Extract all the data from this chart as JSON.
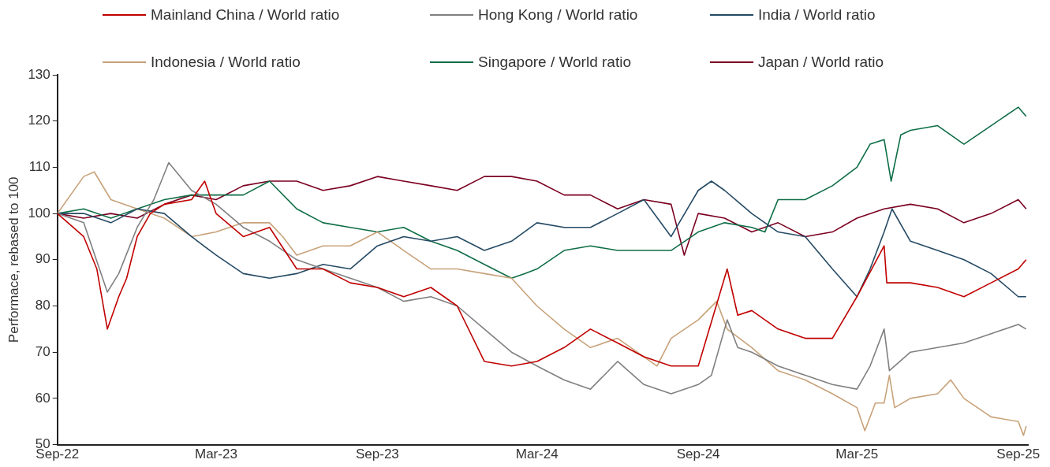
{
  "chart_data": {
    "type": "line",
    "ylabel": "Performace, rebased to 100",
    "xlim": [
      "2022-09-01",
      "2025-09-12"
    ],
    "xticks": [
      {
        "value": "2022-09-01",
        "label": "Sep-22"
      },
      {
        "value": "2023-03-01",
        "label": "Mar-23"
      },
      {
        "value": "2023-09-01",
        "label": "Sep-23"
      },
      {
        "value": "2024-03-01",
        "label": "Mar-24"
      },
      {
        "value": "2024-09-01",
        "label": "Sep-24"
      },
      {
        "value": "2025-03-01",
        "label": "Mar-25"
      },
      {
        "value": "2025-09-01",
        "label": "Sep-25"
      }
    ],
    "ylim": [
      50,
      130
    ],
    "yticks": [
      50,
      60,
      70,
      80,
      90,
      100,
      110,
      120,
      130
    ],
    "grid": false,
    "legend": "top",
    "marker": "none",
    "line_style": "solid",
    "series": [
      {
        "name": "Mainland China / World ratio",
        "color": "#c00000",
        "x": [
          "2022-09-01",
          "2022-10-01",
          "2022-10-16",
          "2022-10-28",
          "2022-11-10",
          "2022-11-19",
          "2022-12-01",
          "2022-12-16",
          "2023-01-01",
          "2023-02-01",
          "2023-02-16",
          "2023-03-01",
          "2023-04-01",
          "2023-05-01",
          "2023-06-01",
          "2023-07-01",
          "2023-08-01",
          "2023-09-01",
          "2023-10-01",
          "2023-11-01",
          "2023-12-01",
          "2024-01-01",
          "2024-02-01",
          "2024-03-01",
          "2024-04-01",
          "2024-05-01",
          "2024-06-01",
          "2024-07-01",
          "2024-08-01",
          "2024-09-01",
          "2024-10-04",
          "2024-10-16",
          "2024-11-01",
          "2024-12-01",
          "2025-01-01",
          "2025-02-01",
          "2025-03-01",
          "2025-04-01",
          "2025-04-04",
          "2025-05-01",
          "2025-06-01",
          "2025-07-01",
          "2025-08-01",
          "2025-09-01",
          "2025-09-10"
        ],
        "values": [
          100,
          95,
          88,
          75,
          82,
          86,
          95,
          100,
          102,
          103,
          107,
          100,
          95,
          97,
          88,
          88,
          85,
          84,
          82,
          84,
          80,
          68,
          67,
          68,
          71,
          75,
          72,
          69,
          67,
          67,
          88,
          78,
          79,
          75,
          73,
          73,
          82,
          93,
          85,
          85,
          84,
          82,
          85,
          88,
          90
        ]
      },
      {
        "name": "Hong Kong / World ratio",
        "color": "#808080",
        "x": [
          "2022-09-01",
          "2022-10-01",
          "2022-10-28",
          "2022-11-10",
          "2022-12-01",
          "2022-12-20",
          "2023-01-06",
          "2023-02-01",
          "2023-03-01",
          "2023-04-01",
          "2023-05-01",
          "2023-06-01",
          "2023-07-01",
          "2023-08-01",
          "2023-09-01",
          "2023-10-01",
          "2023-11-01",
          "2023-12-01",
          "2024-01-01",
          "2024-02-01",
          "2024-03-01",
          "2024-04-01",
          "2024-05-01",
          "2024-06-01",
          "2024-07-01",
          "2024-08-01",
          "2024-09-01",
          "2024-09-16",
          "2024-10-04",
          "2024-10-16",
          "2024-11-01",
          "2024-12-01",
          "2025-01-01",
          "2025-02-01",
          "2025-03-01",
          "2025-03-16",
          "2025-04-01",
          "2025-04-07",
          "2025-05-01",
          "2025-06-01",
          "2025-07-01",
          "2025-08-01",
          "2025-09-01",
          "2025-09-10"
        ],
        "values": [
          100,
          98,
          83,
          87,
          97,
          103,
          111,
          105,
          102,
          97,
          94,
          90,
          88,
          86,
          84,
          81,
          82,
          80,
          75,
          70,
          67,
          64,
          62,
          68,
          63,
          61,
          63,
          65,
          77,
          71,
          70,
          67,
          65,
          63,
          62,
          67,
          75,
          66,
          70,
          71,
          72,
          74,
          76,
          75
        ]
      },
      {
        "name": "India / World ratio",
        "color": "#254a64",
        "x": [
          "2022-09-01",
          "2022-10-01",
          "2022-11-01",
          "2022-12-01",
          "2023-01-01",
          "2023-02-01",
          "2023-03-01",
          "2023-04-01",
          "2023-05-01",
          "2023-06-01",
          "2023-07-01",
          "2023-08-01",
          "2023-09-01",
          "2023-10-01",
          "2023-11-01",
          "2023-12-01",
          "2024-01-01",
          "2024-02-01",
          "2024-03-01",
          "2024-04-01",
          "2024-05-01",
          "2024-06-01",
          "2024-07-01",
          "2024-08-01",
          "2024-09-01",
          "2024-09-16",
          "2024-10-01",
          "2024-11-01",
          "2024-11-16",
          "2024-12-01",
          "2025-01-01",
          "2025-02-01",
          "2025-03-01",
          "2025-03-16",
          "2025-04-01",
          "2025-04-10",
          "2025-05-01",
          "2025-06-01",
          "2025-07-01",
          "2025-08-01",
          "2025-09-01",
          "2025-09-10"
        ],
        "values": [
          100,
          100,
          98,
          101,
          100,
          95,
          91,
          87,
          86,
          87,
          89,
          88,
          93,
          95,
          94,
          95,
          92,
          94,
          98,
          97,
          97,
          100,
          103,
          95,
          105,
          107,
          105,
          100,
          98,
          96,
          95,
          88,
          82,
          88,
          96,
          101,
          94,
          92,
          90,
          87,
          82,
          82
        ]
      },
      {
        "name": "Indonesia / World ratio",
        "color": "#c8a27a",
        "x": [
          "2022-09-01",
          "2022-09-16",
          "2022-10-01",
          "2022-10-13",
          "2022-11-01",
          "2022-12-01",
          "2023-01-01",
          "2023-02-01",
          "2023-03-01",
          "2023-04-01",
          "2023-05-01",
          "2023-05-16",
          "2023-06-01",
          "2023-07-01",
          "2023-08-01",
          "2023-09-01",
          "2023-10-01",
          "2023-11-01",
          "2023-12-01",
          "2024-01-01",
          "2024-02-01",
          "2024-03-01",
          "2024-04-01",
          "2024-05-01",
          "2024-06-01",
          "2024-07-01",
          "2024-07-16",
          "2024-08-01",
          "2024-09-01",
          "2024-09-22",
          "2024-10-04",
          "2024-11-01",
          "2024-12-01",
          "2025-01-01",
          "2025-02-01",
          "2025-03-01",
          "2025-03-10",
          "2025-03-22",
          "2025-04-01",
          "2025-04-07",
          "2025-04-13",
          "2025-05-01",
          "2025-06-01",
          "2025-06-16",
          "2025-07-01",
          "2025-08-01",
          "2025-09-01",
          "2025-09-07",
          "2025-09-10"
        ],
        "values": [
          100,
          104,
          108,
          109,
          103,
          101,
          99,
          95,
          96,
          98,
          98,
          95,
          91,
          93,
          93,
          96,
          92,
          88,
          88,
          87,
          86,
          80,
          75,
          71,
          73,
          69,
          67,
          73,
          77,
          81,
          75,
          71,
          66,
          64,
          61,
          58,
          53,
          59,
          59,
          65,
          58,
          60,
          61,
          64,
          60,
          56,
          55,
          52,
          54
        ]
      },
      {
        "name": "Singapore / World ratio",
        "color": "#0e6e46",
        "x": [
          "2022-09-01",
          "2022-10-01",
          "2022-11-01",
          "2022-12-01",
          "2023-01-01",
          "2023-02-01",
          "2023-03-01",
          "2023-04-01",
          "2023-05-01",
          "2023-06-01",
          "2023-07-01",
          "2023-08-01",
          "2023-09-01",
          "2023-10-01",
          "2023-11-01",
          "2023-12-01",
          "2024-01-01",
          "2024-02-01",
          "2024-02-16",
          "2024-03-01",
          "2024-04-01",
          "2024-05-01",
          "2024-06-01",
          "2024-07-01",
          "2024-08-01",
          "2024-09-01",
          "2024-10-01",
          "2024-11-01",
          "2024-11-16",
          "2024-12-01",
          "2025-01-01",
          "2025-02-01",
          "2025-03-01",
          "2025-03-16",
          "2025-04-01",
          "2025-04-09",
          "2025-04-20",
          "2025-05-01",
          "2025-06-01",
          "2025-07-01",
          "2025-08-01",
          "2025-09-01",
          "2025-09-10"
        ],
        "values": [
          100,
          101,
          99,
          101,
          103,
          104,
          104,
          104,
          107,
          101,
          98,
          97,
          96,
          97,
          94,
          92,
          89,
          86,
          87,
          88,
          92,
          93,
          92,
          92,
          92,
          96,
          98,
          97,
          96,
          103,
          103,
          106,
          110,
          115,
          116,
          107,
          117,
          118,
          119,
          115,
          119,
          123,
          121
        ]
      },
      {
        "name": "Japan / World ratio",
        "color": "#7b0020",
        "x": [
          "2022-09-01",
          "2022-10-01",
          "2022-11-01",
          "2022-12-01",
          "2023-01-01",
          "2023-02-01",
          "2023-03-01",
          "2023-04-01",
          "2023-05-01",
          "2023-06-01",
          "2023-07-01",
          "2023-08-01",
          "2023-09-01",
          "2023-10-01",
          "2023-11-01",
          "2023-12-01",
          "2024-01-01",
          "2024-02-01",
          "2024-03-01",
          "2024-04-01",
          "2024-05-01",
          "2024-06-01",
          "2024-07-01",
          "2024-08-01",
          "2024-08-16",
          "2024-09-01",
          "2024-10-01",
          "2024-11-01",
          "2024-12-01",
          "2025-01-01",
          "2025-02-01",
          "2025-03-01",
          "2025-04-01",
          "2025-05-01",
          "2025-06-01",
          "2025-07-01",
          "2025-08-01",
          "2025-09-01",
          "2025-09-10"
        ],
        "values": [
          100,
          99,
          100,
          99,
          102,
          104,
          103,
          106,
          107,
          107,
          105,
          106,
          108,
          107,
          106,
          105,
          108,
          108,
          107,
          104,
          104,
          101,
          103,
          102,
          91,
          100,
          99,
          96,
          98,
          95,
          96,
          99,
          101,
          102,
          101,
          98,
          100,
          103,
          101
        ]
      }
    ]
  }
}
